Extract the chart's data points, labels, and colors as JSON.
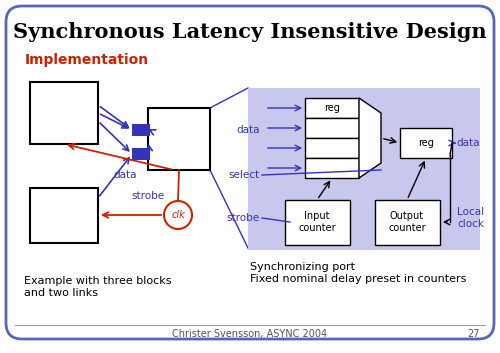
{
  "title": "Synchronous Latency Insensitive Design",
  "subtitle": "Implementation",
  "footer": "Christer Svensson, ASYNC 2004",
  "page_num": "27",
  "bg_color": "#ffffff",
  "border_color": "#5566bb",
  "title_color": "#000000",
  "subtitle_color": "#cc2200",
  "blue_color": "#3333bb",
  "red_color": "#cc2200",
  "light_blue_bg": "#c8c8ee",
  "caption_left": "Example with three blocks\nand two links",
  "caption_right": "Synchronizing port\nFixed nominal delay preset in counters"
}
